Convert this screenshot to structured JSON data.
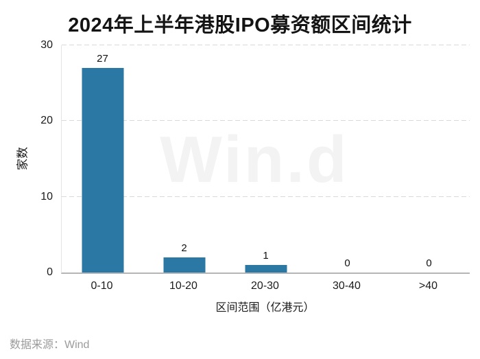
{
  "chart_data": {
    "type": "bar",
    "title": "2024年上半年港股IPO募资额区间统计",
    "categories": [
      "0-10",
      "10-20",
      "20-30",
      "30-40",
      ">40"
    ],
    "values": [
      27,
      2,
      1,
      0,
      0
    ],
    "xlabel": "区间范围（亿港元）",
    "ylabel": "家数",
    "ylim": [
      0,
      30
    ],
    "yticks": [
      0,
      10,
      20,
      30
    ],
    "grid": "horizontal dashed",
    "legend": "none",
    "bar_color": "#2a78a3"
  },
  "watermark": "Win.d",
  "footer": {
    "source": "数据来源：Wind"
  },
  "colors": {
    "background": "#ffffff",
    "bar": "#2a78a3",
    "grid": "#d9d9d9",
    "axis_line": "#b5b5b5",
    "spine": "#e4e4e4",
    "text": "#1a1a1a",
    "value_label": "#111111",
    "watermark": "#f3f3f3",
    "source_text": "#9b9b9b"
  }
}
